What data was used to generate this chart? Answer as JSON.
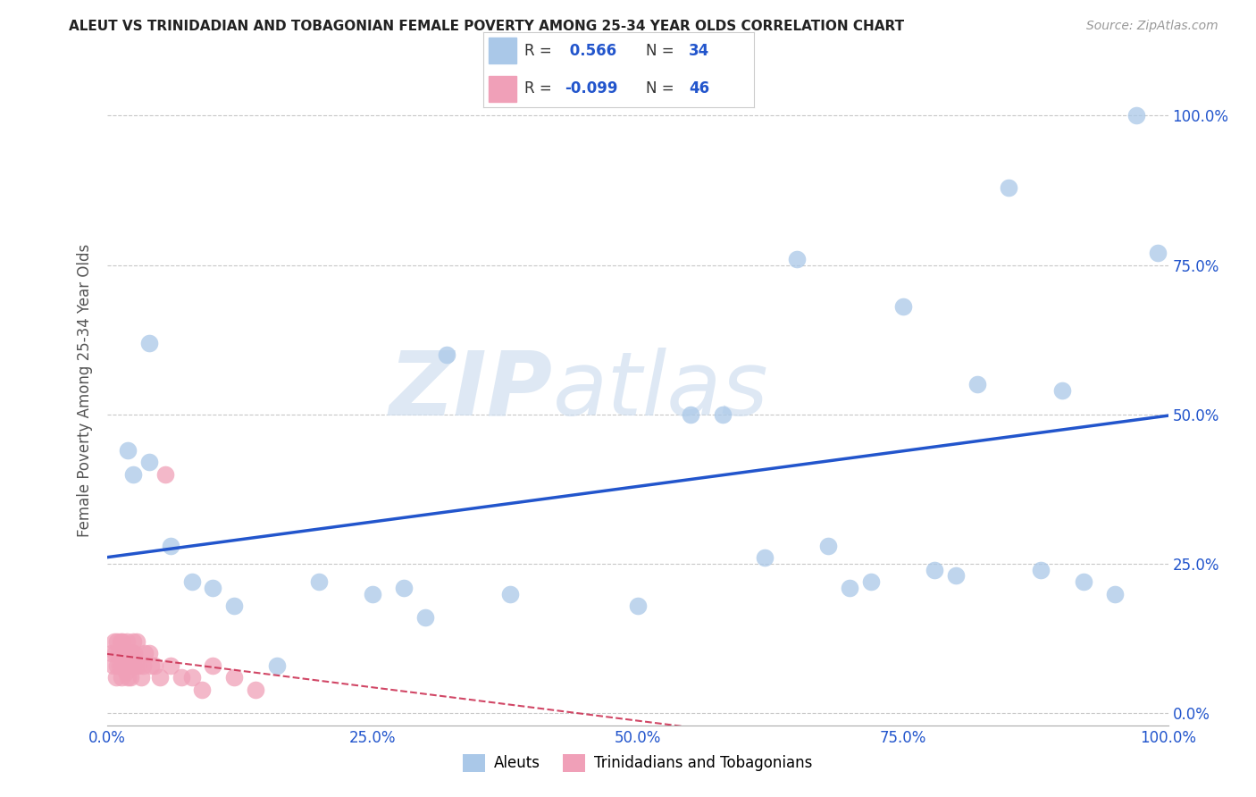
{
  "title": "ALEUT VS TRINIDADIAN AND TOBAGONIAN FEMALE POVERTY AMONG 25-34 YEAR OLDS CORRELATION CHART",
  "source": "Source: ZipAtlas.com",
  "ylabel": "Female Poverty Among 25-34 Year Olds",
  "aleut_R": 0.566,
  "aleut_N": 34,
  "trini_R": -0.099,
  "trini_N": 46,
  "background_color": "#ffffff",
  "grid_color": "#c8c8c8",
  "aleut_color": "#aac8e8",
  "aleut_line_color": "#2255cc",
  "trini_color": "#f0a0b8",
  "trini_line_color": "#cc3355",
  "watermark_color": "#d0dff0",
  "aleut_x": [
    0.02,
    0.025,
    0.04,
    0.04,
    0.06,
    0.08,
    0.1,
    0.12,
    0.16,
    0.2,
    0.25,
    0.28,
    0.3,
    0.32,
    0.38,
    0.5,
    0.55,
    0.58,
    0.62,
    0.65,
    0.68,
    0.7,
    0.72,
    0.75,
    0.78,
    0.8,
    0.82,
    0.85,
    0.88,
    0.9,
    0.92,
    0.95,
    0.97,
    0.99
  ],
  "aleut_y": [
    0.44,
    0.4,
    0.62,
    0.42,
    0.28,
    0.22,
    0.21,
    0.18,
    0.08,
    0.22,
    0.2,
    0.21,
    0.16,
    0.6,
    0.2,
    0.18,
    0.5,
    0.5,
    0.26,
    0.76,
    0.28,
    0.21,
    0.22,
    0.68,
    0.24,
    0.23,
    0.55,
    0.88,
    0.24,
    0.54,
    0.22,
    0.2,
    1.0,
    0.77
  ],
  "trini_x": [
    0.005,
    0.006,
    0.007,
    0.008,
    0.009,
    0.01,
    0.01,
    0.011,
    0.012,
    0.013,
    0.014,
    0.015,
    0.015,
    0.016,
    0.017,
    0.018,
    0.018,
    0.019,
    0.02,
    0.02,
    0.021,
    0.022,
    0.022,
    0.023,
    0.024,
    0.025,
    0.025,
    0.026,
    0.027,
    0.028,
    0.03,
    0.032,
    0.034,
    0.036,
    0.04,
    0.042,
    0.045,
    0.05,
    0.055,
    0.06,
    0.07,
    0.08,
    0.09,
    0.1,
    0.12,
    0.14
  ],
  "trini_y": [
    0.1,
    0.08,
    0.12,
    0.1,
    0.06,
    0.08,
    0.12,
    0.1,
    0.08,
    0.12,
    0.06,
    0.08,
    0.12,
    0.1,
    0.08,
    0.1,
    0.07,
    0.12,
    0.06,
    0.1,
    0.08,
    0.06,
    0.1,
    0.08,
    0.1,
    0.08,
    0.12,
    0.1,
    0.08,
    0.12,
    0.08,
    0.06,
    0.08,
    0.1,
    0.1,
    0.08,
    0.08,
    0.06,
    0.4,
    0.08,
    0.06,
    0.06,
    0.04,
    0.08,
    0.06,
    0.04
  ],
  "xlim": [
    0.0,
    1.0
  ],
  "ylim": [
    -0.02,
    1.1
  ],
  "xticks": [
    0.0,
    0.25,
    0.5,
    0.75,
    1.0
  ],
  "yticks": [
    0.0,
    0.25,
    0.5,
    0.75,
    1.0
  ],
  "xticklabels": [
    "0.0%",
    "25.0%",
    "50.0%",
    "75.0%",
    "100.0%"
  ],
  "right_yticklabels": [
    "0.0%",
    "25.0%",
    "50.0%",
    "75.0%",
    "100.0%"
  ],
  "legend_R1": "R =  0.566   N = 34",
  "legend_R2": "R = -0.099   N = 46"
}
